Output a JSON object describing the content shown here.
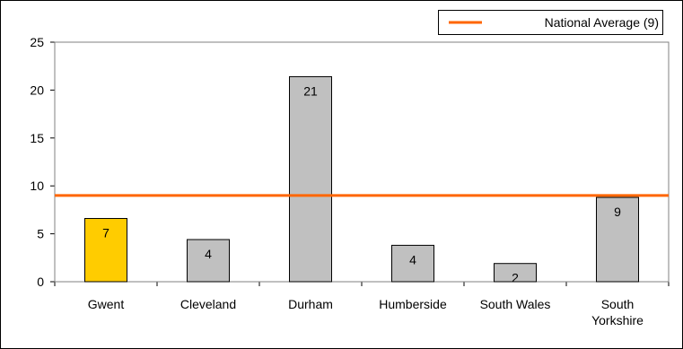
{
  "chart_data": {
    "type": "bar",
    "categories": [
      "Gwent",
      "Cleveland",
      "Durham",
      "Humberside",
      "South Wales",
      "South Yorkshire"
    ],
    "category_lines": [
      [
        "Gwent"
      ],
      [
        "Cleveland"
      ],
      [
        "Durham"
      ],
      [
        "Humberside"
      ],
      [
        "South Wales"
      ],
      [
        "South",
        "Yorkshire"
      ]
    ],
    "values": [
      6.6,
      4.4,
      21.4,
      3.8,
      1.9,
      8.8
    ],
    "data_labels": [
      "7",
      "4",
      "21",
      "4",
      "2",
      "9"
    ],
    "highlight_index": 0,
    "yticks": [
      0,
      5,
      10,
      15,
      20,
      25
    ],
    "ylim": [
      0,
      25
    ],
    "reference_line": {
      "value": 9,
      "label": "National Average (9)"
    },
    "legend_position": "top-right",
    "grid": false,
    "colors": {
      "bar": "#c0c0c0",
      "highlight": "#ffcc00",
      "reference": "#ff6600",
      "border": "#000000",
      "plot_frame": "#808080"
    },
    "title": "",
    "xlabel": "",
    "ylabel": ""
  }
}
